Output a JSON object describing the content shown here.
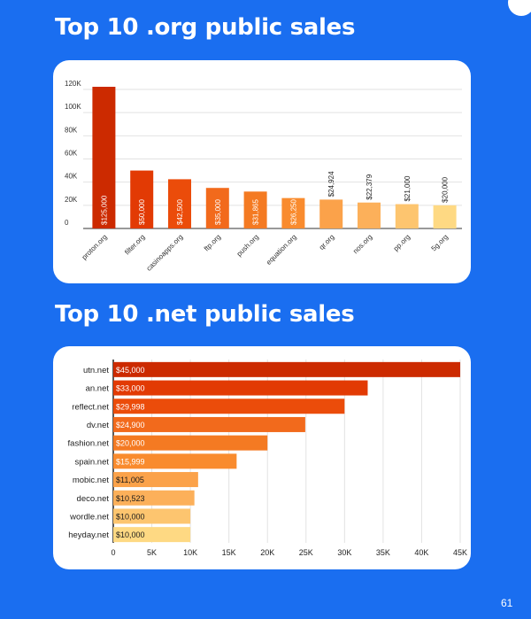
{
  "page_number": "61",
  "chart_data": [
    {
      "type": "bar",
      "orientation": "vertical",
      "title": "Top 10 .org public sales",
      "categories": [
        "proton.org",
        "filter.org",
        "casinoapps.org",
        "ftp.org",
        "push.org",
        "equation.org",
        "qr.org",
        "nos.org",
        "pp.org",
        "5g.org"
      ],
      "values": [
        125000,
        50000,
        42500,
        35000,
        31865,
        26250,
        24924,
        22379,
        21000,
        20000
      ],
      "value_labels": [
        "$125,000",
        "$50,000",
        "$42,500",
        "$35,000",
        "$31,865",
        "$26,250",
        "$24,924",
        "$22,379",
        "$21,000",
        "$20,000"
      ],
      "yticks": [
        0,
        20000,
        40000,
        60000,
        80000,
        100000,
        120000
      ],
      "ytick_labels": [
        "0",
        "20K",
        "40K",
        "60K",
        "80K",
        "100K",
        "120K"
      ],
      "ylim": [
        0,
        120000
      ],
      "grid": true,
      "colors": [
        "#cc2a00",
        "#e23a04",
        "#eb4c0a",
        "#f26a1c",
        "#f47a22",
        "#f98b2e",
        "#fba24a",
        "#fcb05a",
        "#fdc56f",
        "#fed983"
      ],
      "xlabel": "",
      "ylabel": ""
    },
    {
      "type": "bar",
      "orientation": "horizontal",
      "title": "Top 10 .net public sales",
      "categories": [
        "utn.net",
        "an.net",
        "reflect.net",
        "dv.net",
        "fashion.net",
        "spain.net",
        "mobic.net",
        "deco.net",
        "wordle.net",
        "heyday.net"
      ],
      "values": [
        45000,
        33000,
        29998,
        24900,
        20000,
        15999,
        11005,
        10523,
        10000,
        10000
      ],
      "value_labels": [
        "$45,000",
        "$33,000",
        "$29,998",
        "$24,900",
        "$20,000",
        "$15,999",
        "$11,005",
        "$10,523",
        "$10,000",
        "$10,000"
      ],
      "xticks": [
        0,
        5000,
        10000,
        15000,
        20000,
        25000,
        30000,
        35000,
        40000,
        45000
      ],
      "xtick_labels": [
        "0",
        "5K",
        "10K",
        "15K",
        "20K",
        "25K",
        "30K",
        "35K",
        "40K",
        "45K"
      ],
      "xlim": [
        0,
        45000
      ],
      "grid": true,
      "colors": [
        "#cc2a00",
        "#e23a04",
        "#eb4c0a",
        "#f26a1c",
        "#f47a22",
        "#f98b2e",
        "#fba24a",
        "#fcb05a",
        "#fdc56f",
        "#fed983"
      ],
      "label_colors_light": [
        true,
        true,
        true,
        true,
        true,
        true,
        false,
        false,
        false,
        false
      ],
      "xlabel": "",
      "ylabel": ""
    }
  ]
}
